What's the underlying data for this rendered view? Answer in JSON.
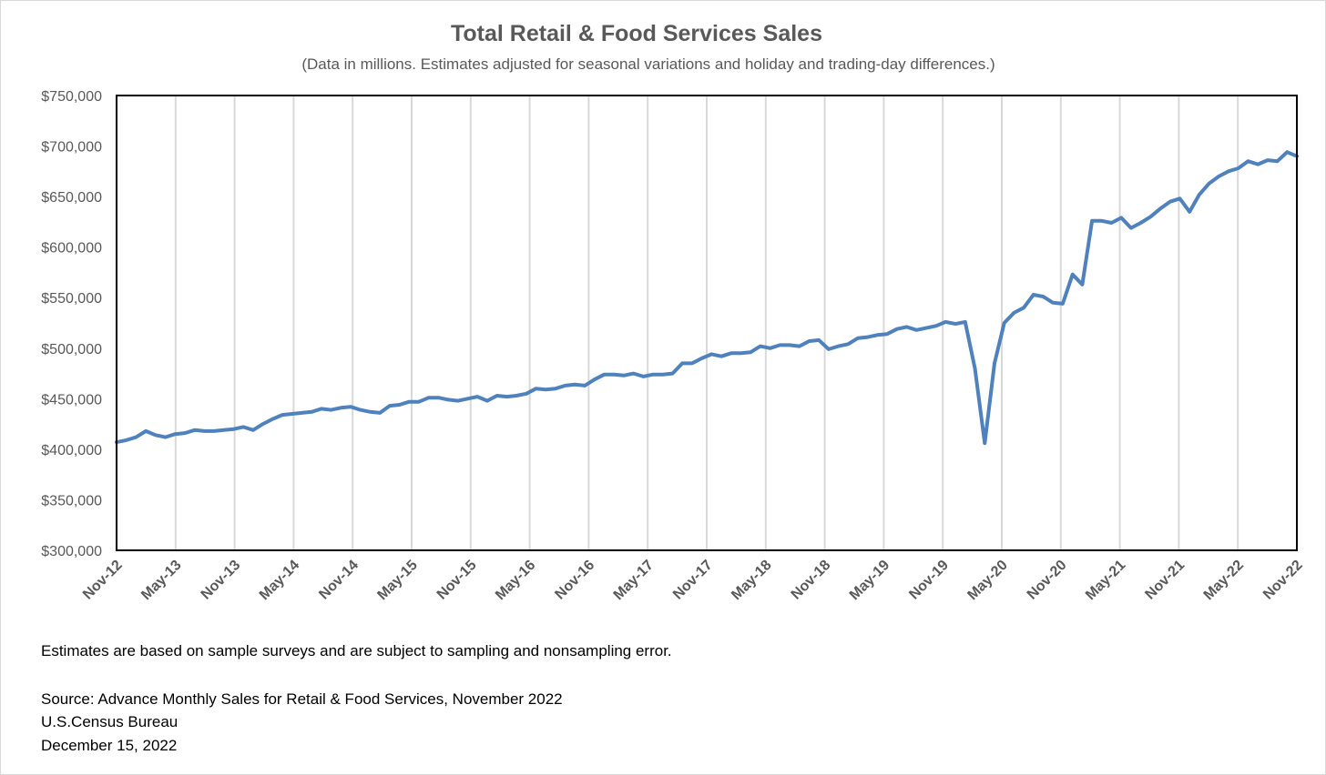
{
  "chart_data": {
    "type": "line",
    "title": "Total Retail & Food Services Sales",
    "subtitle": "(Data in millions. Estimates adjusted for seasonal variations and holiday and trading-day differences.)",
    "xlabel": "",
    "ylabel": "",
    "ylim": [
      300000,
      750000
    ],
    "yticks": [
      300000,
      350000,
      400000,
      450000,
      500000,
      550000,
      600000,
      650000,
      700000,
      750000
    ],
    "ytick_labels": [
      "$300,000",
      "$350,000",
      "$400,000",
      "$450,000",
      "$500,000",
      "$550,000",
      "$600,000",
      "$650,000",
      "$700,000",
      "$750,000"
    ],
    "xtick_labels": [
      "Nov-12",
      "May-13",
      "Nov-13",
      "May-14",
      "Nov-14",
      "May-15",
      "Nov-15",
      "May-16",
      "Nov-16",
      "May-17",
      "Nov-17",
      "May-18",
      "Nov-18",
      "May-19",
      "Nov-19",
      "May-20",
      "Nov-20",
      "May-21",
      "Nov-21",
      "May-22",
      "Nov-22"
    ],
    "x_start": "Nov-12",
    "x_end": "Nov-22",
    "grid": "vertical",
    "legend": "none",
    "series": [
      {
        "color": "#4f81bd",
        "values": [
          407000,
          409000,
          412000,
          418000,
          414000,
          412000,
          415000,
          416000,
          419000,
          418000,
          418000,
          419000,
          420000,
          422000,
          419000,
          425000,
          430000,
          434000,
          435000,
          436000,
          437000,
          440000,
          439000,
          441000,
          442000,
          439000,
          437000,
          436000,
          443000,
          444000,
          447000,
          447000,
          451000,
          451000,
          449000,
          448000,
          450000,
          452000,
          448000,
          453000,
          452000,
          453000,
          455000,
          460000,
          459000,
          460000,
          463000,
          464000,
          463000,
          469000,
          474000,
          474000,
          473000,
          475000,
          472000,
          474000,
          474000,
          475000,
          485000,
          485000,
          490000,
          494000,
          492000,
          495000,
          495000,
          496000,
          502000,
          500000,
          503000,
          503000,
          502000,
          507000,
          508000,
          499000,
          502000,
          504000,
          510000,
          511000,
          513000,
          514000,
          519000,
          521000,
          518000,
          520000,
          522000,
          526000,
          524000,
          526000,
          480000,
          406000,
          485000,
          525000,
          535000,
          540000,
          553000,
          551000,
          545000,
          544000,
          573000,
          563000,
          626000,
          626000,
          624000,
          629000,
          619000,
          624000,
          630000,
          638000,
          645000,
          648000,
          635000,
          652000,
          663000,
          670000,
          675000,
          678000,
          685000,
          682000,
          686000,
          685000,
          694000,
          690000
        ]
      }
    ]
  },
  "notes": {
    "sampling": "Estimates are based on sample surveys and are subject to sampling and nonsampling error.",
    "source": "Source: Advance Monthly Sales for Retail & Food Services, November 2022",
    "agency": "U.S.Census Bureau",
    "date": "December 15, 2022"
  }
}
